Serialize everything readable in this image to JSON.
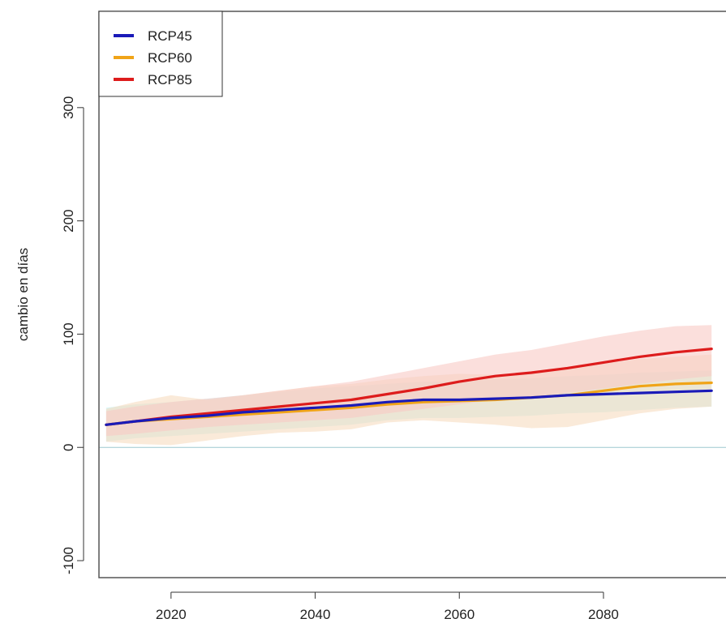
{
  "chart_data": {
    "type": "line",
    "title": "",
    "xlabel": "",
    "ylabel": "cambio en días",
    "xlim": [
      2010,
      2097
    ],
    "ylim": [
      -115,
      385
    ],
    "x_ticks": [
      2020,
      2040,
      2060,
      2080
    ],
    "y_ticks": [
      -100,
      0,
      100,
      200,
      300
    ],
    "reference_line": 0,
    "legend_position": "top-left",
    "series": [
      {
        "name": "RCP45",
        "color": "#1a1ab8",
        "band_color": "#bfeef0",
        "x": [
          2011,
          2015,
          2020,
          2025,
          2030,
          2035,
          2040,
          2045,
          2050,
          2055,
          2060,
          2065,
          2070,
          2075,
          2080,
          2085,
          2090,
          2095
        ],
        "values": [
          20,
          23,
          26,
          28,
          31,
          33,
          35,
          37,
          40,
          42,
          42,
          43,
          44,
          46,
          47,
          48,
          49,
          50
        ],
        "lower": [
          5,
          8,
          10,
          12,
          14,
          16,
          18,
          20,
          24,
          26,
          26,
          27,
          28,
          30,
          31,
          33,
          35,
          36
        ],
        "upper": [
          35,
          38,
          40,
          43,
          46,
          49,
          52,
          54,
          56,
          58,
          58,
          60,
          61,
          63,
          64,
          66,
          67,
          68
        ]
      },
      {
        "name": "RCP60",
        "color": "#f0a418",
        "band_color": "#f7dcc0",
        "x": [
          2011,
          2015,
          2020,
          2025,
          2030,
          2035,
          2040,
          2045,
          2050,
          2055,
          2060,
          2065,
          2070,
          2075,
          2080,
          2085,
          2090,
          2095
        ],
        "values": [
          20,
          23,
          25,
          27,
          29,
          31,
          33,
          35,
          38,
          40,
          41,
          42,
          44,
          46,
          50,
          54,
          56,
          57
        ],
        "lower": [
          5,
          3,
          2,
          6,
          10,
          13,
          14,
          16,
          22,
          24,
          22,
          20,
          17,
          18,
          24,
          30,
          34,
          36
        ],
        "upper": [
          34,
          40,
          46,
          42,
          46,
          50,
          54,
          56,
          60,
          63,
          65,
          64,
          66,
          70,
          74,
          78,
          80,
          82
        ]
      },
      {
        "name": "RCP85",
        "color": "#dd1c1c",
        "band_color": "#f9c9c4",
        "x": [
          2011,
          2015,
          2020,
          2025,
          2030,
          2035,
          2040,
          2045,
          2050,
          2055,
          2060,
          2065,
          2070,
          2075,
          2080,
          2085,
          2090,
          2095
        ],
        "values": [
          20,
          23,
          27,
          30,
          33,
          36,
          39,
          42,
          47,
          52,
          58,
          63,
          66,
          70,
          75,
          80,
          84,
          87
        ],
        "lower": [
          10,
          12,
          15,
          18,
          20,
          22,
          24,
          26,
          30,
          34,
          38,
          42,
          45,
          48,
          52,
          56,
          60,
          63
        ],
        "upper": [
          32,
          36,
          40,
          43,
          46,
          50,
          54,
          58,
          64,
          70,
          76,
          82,
          86,
          92,
          98,
          103,
          107,
          108
        ]
      }
    ]
  }
}
